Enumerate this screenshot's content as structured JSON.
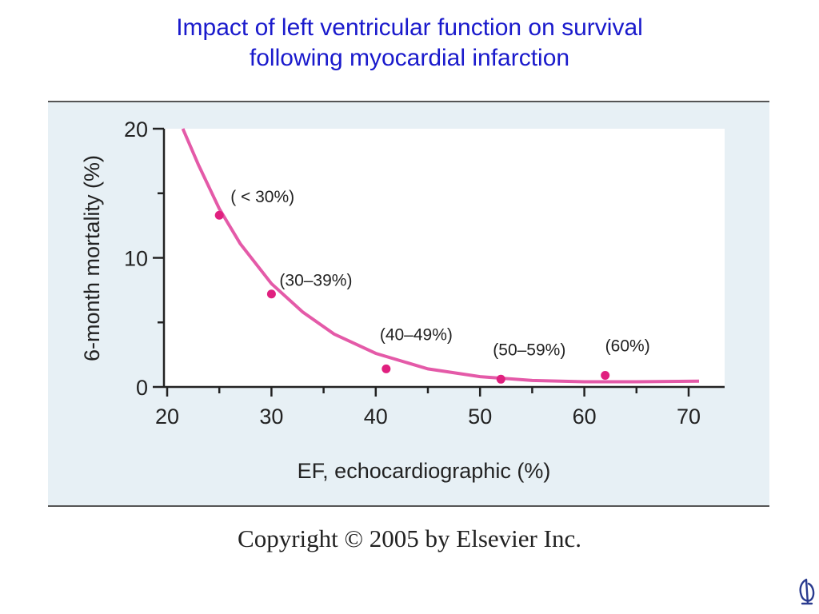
{
  "title": {
    "line1": "Impact of left ventricular function on survival",
    "line2": "following myocardial infarction"
  },
  "copyright": "Copyright © 2005 by Elsevier Inc.",
  "logo_icon": "elsevier-tree-icon",
  "colors": {
    "title": "#1a1acc",
    "curve": "#e45aa8",
    "points": "#e0207f",
    "panel": "#e7f0f5",
    "plot_area": "#ffffff",
    "axis": "#222222"
  },
  "chart_data": {
    "type": "scatter",
    "title": "",
    "xlabel": "EF, echocardiographic (%)",
    "ylabel": "6-month mortality (%)",
    "xlim": [
      20,
      72
    ],
    "ylim": [
      0,
      20
    ],
    "x_ticks": [
      20,
      30,
      40,
      50,
      60,
      70
    ],
    "y_ticks": [
      0,
      10,
      20
    ],
    "x_minor_ticks": [
      25,
      35,
      45,
      55,
      65
    ],
    "y_minor_ticks": [
      5,
      15
    ],
    "grid": false,
    "points": [
      {
        "x": 25,
        "y": 13.3,
        "label": "( < 30%)"
      },
      {
        "x": 30,
        "y": 7.2,
        "label": "(30–39%)"
      },
      {
        "x": 41,
        "y": 1.4,
        "label": "(40–49%)"
      },
      {
        "x": 52,
        "y": 0.6,
        "label": "(50–59%)"
      },
      {
        "x": 62,
        "y": 0.9,
        "label": "(60%)"
      }
    ],
    "fit_curve": {
      "x": [
        21.5,
        23,
        25,
        27,
        30,
        33,
        36,
        40,
        45,
        50,
        55,
        60,
        65,
        71
      ],
      "y": [
        20,
        17.2,
        13.8,
        11.1,
        8.0,
        5.8,
        4.1,
        2.6,
        1.4,
        0.8,
        0.5,
        0.4,
        0.4,
        0.45
      ]
    }
  }
}
